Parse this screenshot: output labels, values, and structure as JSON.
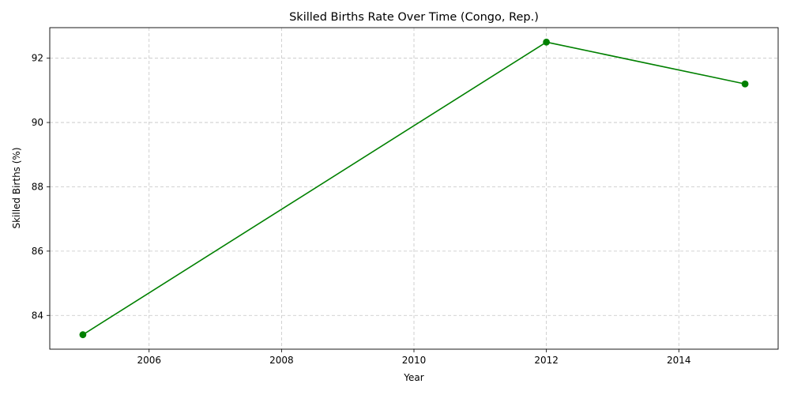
{
  "chart_data": {
    "type": "line",
    "title": "Skilled Births Rate Over Time (Congo, Rep.)",
    "xlabel": "Year",
    "ylabel": "Skilled Births (%)",
    "xlim": [
      2004.5,
      2015.5
    ],
    "ylim": [
      82.95,
      92.95
    ],
    "xticks": [
      2006,
      2008,
      2010,
      2012,
      2014
    ],
    "xtick_labels": [
      "2006",
      "2008",
      "2010",
      "2012",
      "2014"
    ],
    "yticks": [
      84,
      86,
      88,
      90,
      92
    ],
    "ytick_labels": [
      "84",
      "86",
      "88",
      "90",
      "92"
    ],
    "grid": true,
    "series": [
      {
        "x": [
          2005,
          2012,
          2015
        ],
        "y": [
          83.4,
          92.5,
          91.2
        ],
        "color": "#008000",
        "marker": "circle"
      }
    ]
  }
}
